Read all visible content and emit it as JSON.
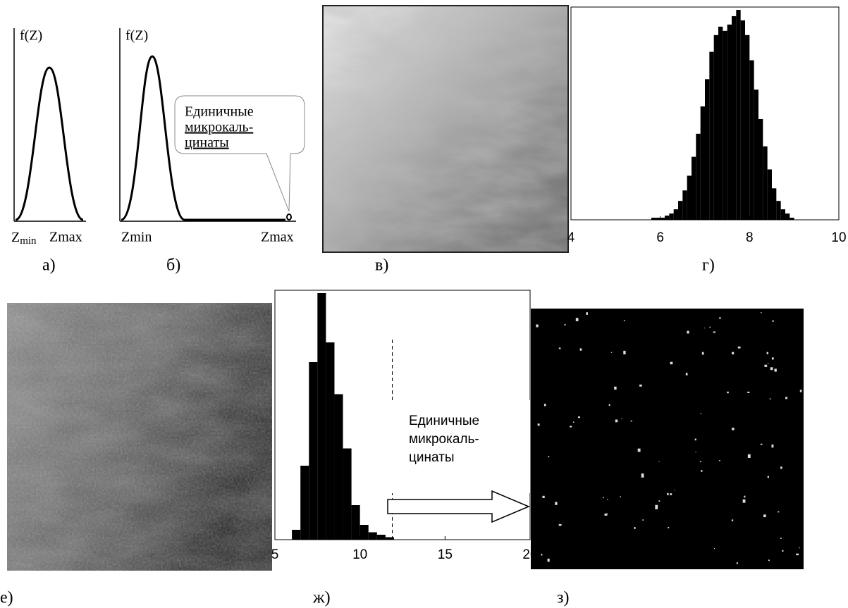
{
  "panel_a": {
    "ylabel": "f(Z)",
    "zmin": "Z",
    "zmin_sub": "min",
    "zmax": "Zmax"
  },
  "panel_b": {
    "ylabel": "f(Z)",
    "zmin": "Zmin",
    "zmax": "Zmax",
    "callout": [
      "Единичные",
      "микрокаль-",
      "цинаты"
    ]
  },
  "captions": {
    "a": "а)",
    "b": "б)",
    "v": "в)",
    "g": "г)",
    "e": "е)",
    "zh": "ж)",
    "z": "з)"
  },
  "callout_zh": [
    "Единичные",
    "микрокаль-",
    "цинаты"
  ],
  "chart_data": [
    {
      "type": "histogram",
      "color": "#000000",
      "bins": [
        5.8,
        5.9,
        6.0,
        6.1,
        6.2,
        6.3,
        6.4,
        6.5,
        6.6,
        6.7,
        6.8,
        6.9,
        7.0,
        7.1,
        7.2,
        7.3,
        7.4,
        7.5,
        7.6,
        7.7,
        7.8,
        7.9,
        8.0,
        8.1,
        8.2,
        8.3,
        8.4,
        8.5,
        8.6,
        8.7,
        8.8,
        8.9,
        9.0
      ],
      "values": [
        1,
        1,
        1,
        2,
        3,
        5,
        9,
        14,
        21,
        30,
        41,
        54,
        67,
        80,
        88,
        92,
        90,
        93,
        97,
        100,
        95,
        88,
        76,
        62,
        48,
        35,
        24,
        15,
        9,
        5,
        3,
        1
      ],
      "xlim": [
        4,
        10
      ],
      "xticks": [
        4,
        6,
        8,
        10
      ],
      "ylim": [
        0,
        100
      ]
    },
    {
      "type": "histogram",
      "color": "#000000",
      "bins": [
        6.0,
        6.5,
        7.0,
        7.5,
        8.0,
        8.5,
        9.0,
        9.5,
        10.0,
        10.5,
        11.0,
        11.5,
        12.0
      ],
      "values": [
        4,
        30,
        72,
        100,
        80,
        59,
        37,
        14,
        6,
        3,
        2,
        1
      ],
      "xlim": [
        5,
        20
      ],
      "xticks": [
        5,
        10,
        15,
        20
      ],
      "ylim": [
        0,
        100
      ],
      "threshold": 11.9
    }
  ]
}
